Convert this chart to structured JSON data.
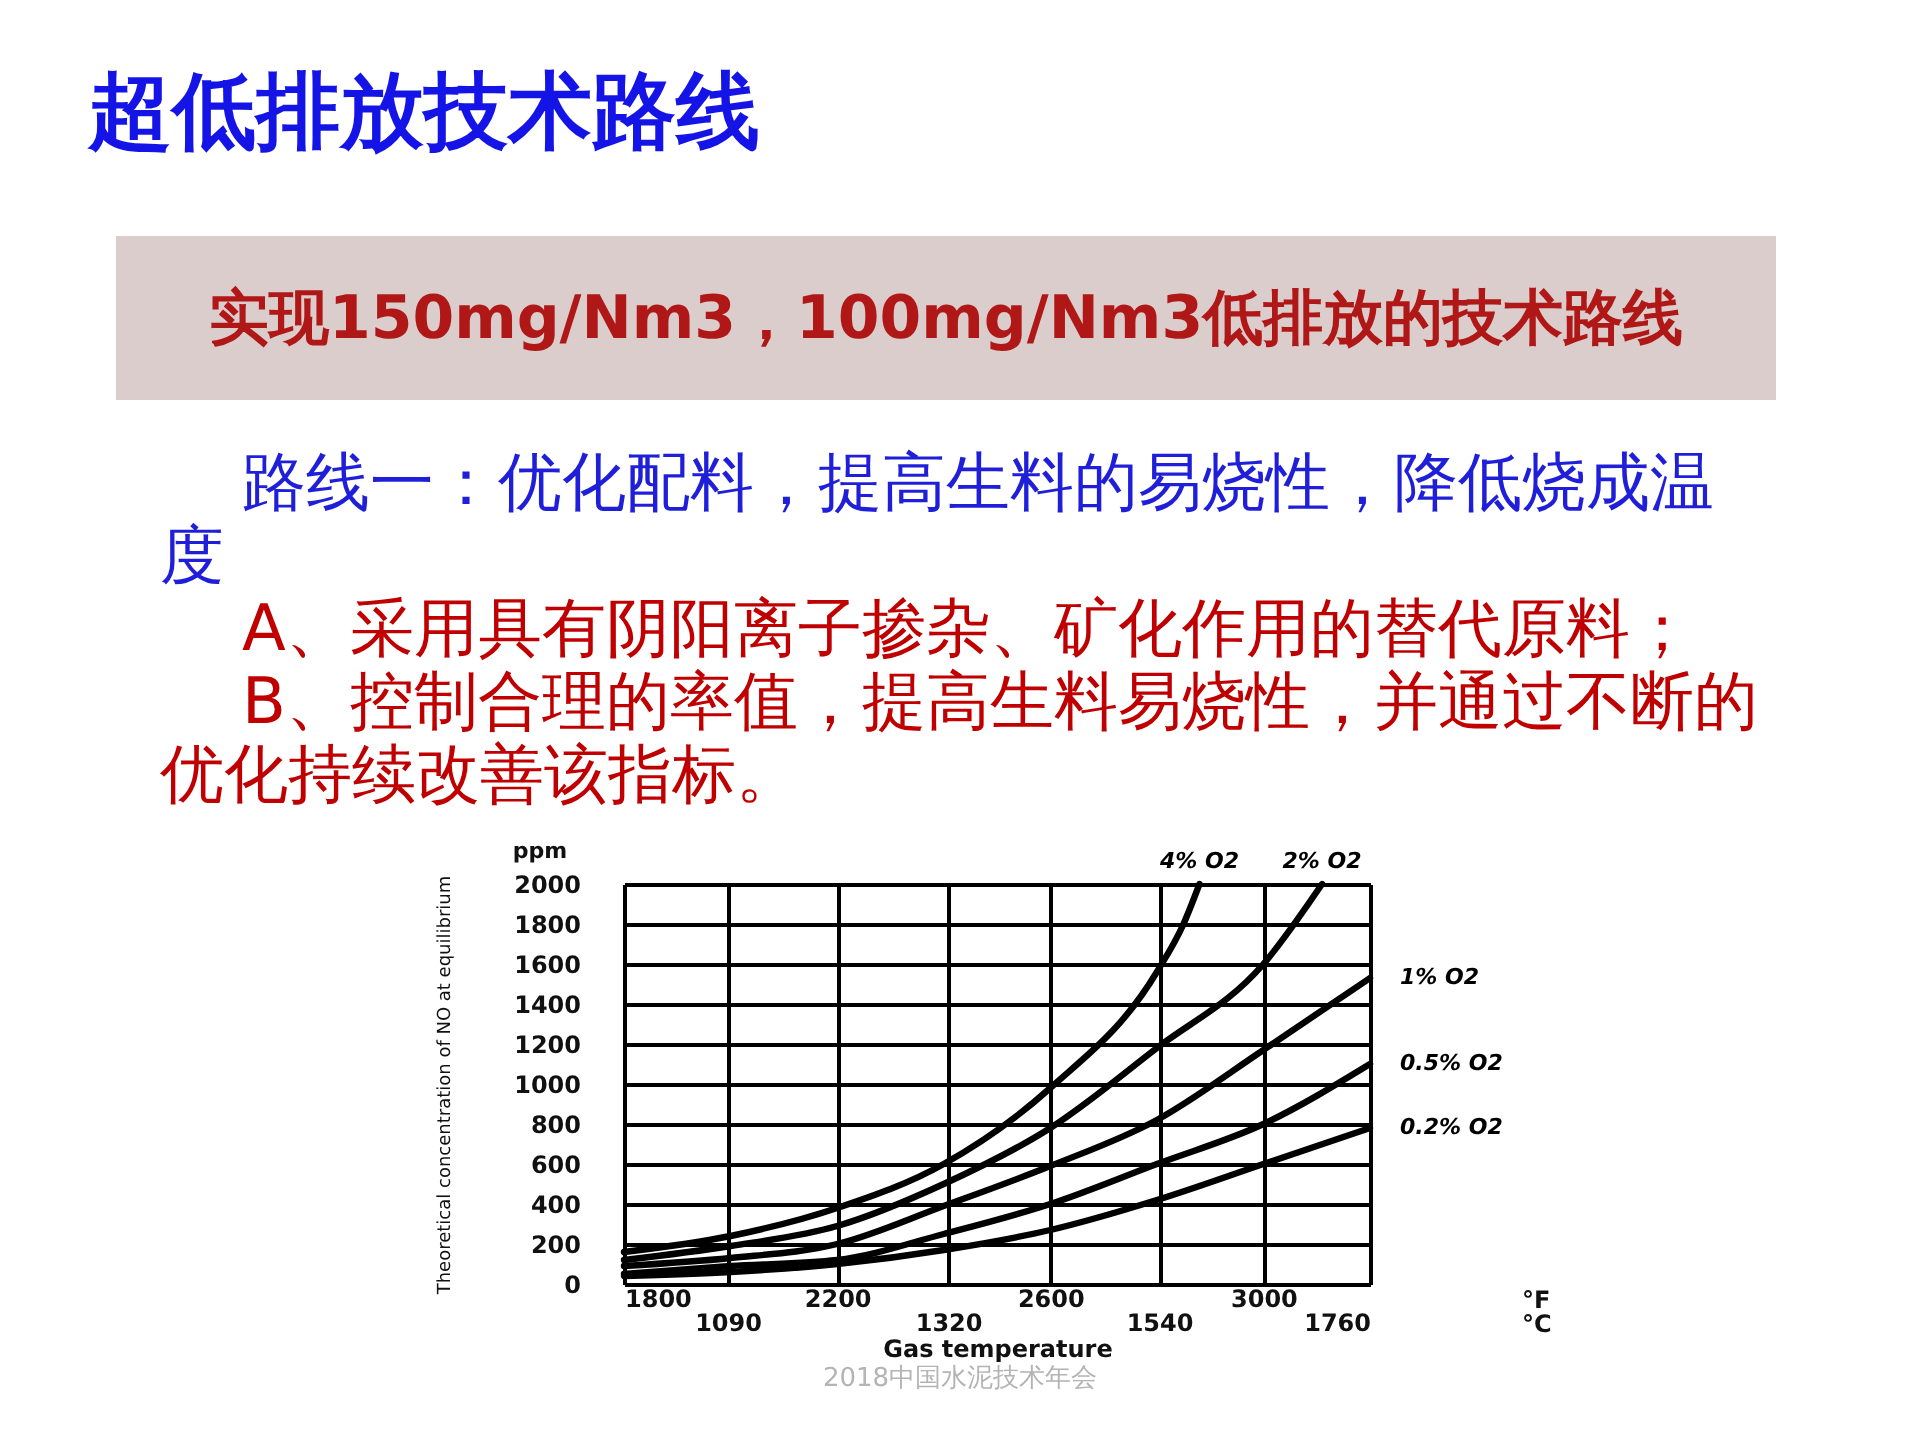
{
  "chart_data": {
    "type": "line",
    "title": "超低排放技术路线",
    "subtitle": "实现150mg/Nm3，100mg/Nm3低排放的技术路线",
    "xlabel": "Gas temperature",
    "ylabel": "Theoretical concentration of NO at equilibrium",
    "annotations": [
      "路线一：优化配料，提高生料的易烧性，降低烧成温度",
      "A、采用具有阴阳离子掺杂、矿化作用的替代原料；",
      "B、控制合理的率值，提高生料易烧性，并通过不断的优化持续改善该指标。",
      "ppm",
      "°F",
      "°C",
      "2018中国水泥技术年会"
    ],
    "xlim": [
      1800,
      3200
    ],
    "xticks": [
      1800,
      2200,
      2600,
      3000
    ],
    "x2lim": [
      982,
      1760
    ],
    "x2ticks": [
      1090,
      1320,
      1540,
      1760
    ],
    "ylim": [
      0,
      2000
    ],
    "yticks": [
      0,
      200,
      400,
      600,
      800,
      1000,
      1200,
      1400,
      1600,
      1800,
      2000
    ],
    "grid": true,
    "legend": false,
    "line_style": "solid",
    "series": [
      {
        "name": "4% O2",
        "color": "#000000",
        "x": [
          1800,
          2000,
          2200,
          2400,
          2600,
          2800,
          2850,
          2880
        ],
        "values": [
          160,
          240,
          380,
          600,
          980,
          1560,
          1800,
          2000
        ]
      },
      {
        "name": "2% O2",
        "color": "#000000",
        "x": [
          1800,
          2000,
          2200,
          2400,
          2600,
          2800,
          3000,
          3110
        ],
        "values": [
          120,
          190,
          290,
          500,
          780,
          1180,
          1600,
          2000
        ]
      },
      {
        "name": "1% O2",
        "color": "#000000",
        "x": [
          1800,
          2000,
          2200,
          2400,
          2600,
          2800,
          3000,
          3200
        ],
        "values": [
          90,
          130,
          200,
          390,
          590,
          820,
          1170,
          1530
        ]
      },
      {
        "name": "0.5% O2",
        "color": "#000000",
        "x": [
          1800,
          2000,
          2200,
          2400,
          2600,
          2800,
          3000,
          3200
        ],
        "values": [
          50,
          90,
          120,
          250,
          400,
          600,
          800,
          1100
        ]
      },
      {
        "name": "0.2% O2",
        "color": "#000000",
        "x": [
          1800,
          2000,
          2200,
          2400,
          2600,
          2800,
          3000,
          3200
        ],
        "values": [
          40,
          60,
          100,
          170,
          270,
          420,
          600,
          780
        ]
      }
    ]
  }
}
